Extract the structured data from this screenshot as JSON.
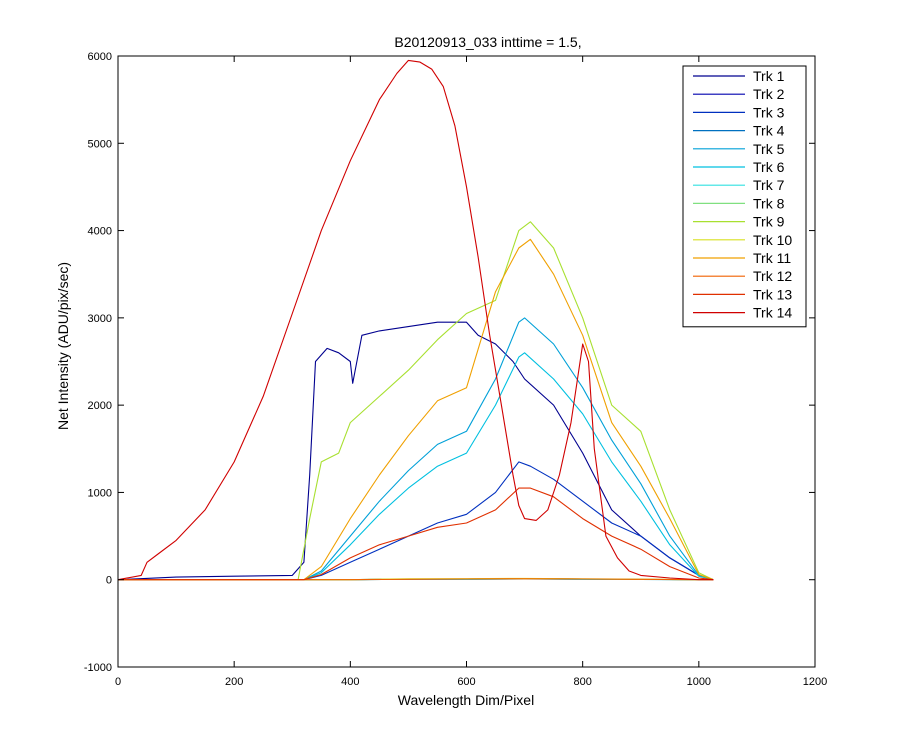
{
  "chart_data": {
    "type": "line",
    "title": "B20120913_033 inttime = 1.5,",
    "xlabel": "Wavelength Dim/Pixel",
    "ylabel": "Net Intensity (ADU/pix/sec)",
    "xlim": [
      0,
      1200
    ],
    "ylim": [
      -1000,
      6000
    ],
    "xticks": [
      0,
      200,
      400,
      600,
      800,
      1000,
      1200
    ],
    "yticks": [
      -1000,
      0,
      1000,
      2000,
      3000,
      4000,
      5000,
      6000
    ],
    "grid": false,
    "legend_position": "top-right",
    "series": [
      {
        "name": "Trk 1",
        "color": "#00008f",
        "x": [
          0,
          100,
          200,
          300,
          320,
          330,
          340,
          360,
          380,
          400,
          404,
          420,
          450,
          500,
          550,
          600,
          620,
          650,
          680,
          700,
          750,
          800,
          850,
          900,
          950,
          1000,
          1025
        ],
        "y": [
          0,
          30,
          40,
          50,
          200,
          1200,
          2500,
          2650,
          2600,
          2500,
          2250,
          2800,
          2850,
          2900,
          2950,
          2950,
          2800,
          2700,
          2500,
          2300,
          2000,
          1450,
          800,
          500,
          250,
          50,
          0
        ]
      },
      {
        "name": "Trk 2",
        "color": "#0000af",
        "x": [
          0,
          330,
          360,
          400,
          450,
          500,
          550,
          600,
          650,
          690,
          720,
          760,
          800,
          850,
          900,
          950,
          1000,
          1025
        ],
        "y": [
          0,
          0,
          0,
          0,
          5,
          5,
          5,
          8,
          10,
          10,
          10,
          10,
          8,
          5,
          3,
          2,
          0,
          0
        ]
      },
      {
        "name": "Trk 3",
        "color": "#0030bf",
        "x": [
          0,
          320,
          350,
          400,
          450,
          500,
          550,
          600,
          650,
          690,
          710,
          750,
          800,
          850,
          900,
          950,
          1000,
          1025
        ],
        "y": [
          0,
          0,
          50,
          200,
          350,
          500,
          650,
          750,
          1000,
          1350,
          1300,
          1150,
          900,
          650,
          500,
          250,
          50,
          0
        ]
      },
      {
        "name": "Trk 4",
        "color": "#0070c0",
        "x": [
          0,
          400,
          500,
          600,
          700,
          800,
          900,
          1000,
          1025
        ],
        "y": [
          0,
          0,
          5,
          5,
          8,
          5,
          3,
          0,
          0
        ]
      },
      {
        "name": "Trk 5",
        "color": "#00a0d8",
        "x": [
          0,
          320,
          350,
          400,
          450,
          500,
          550,
          600,
          650,
          690,
          700,
          750,
          800,
          850,
          900,
          950,
          1000,
          1025
        ],
        "y": [
          0,
          0,
          100,
          500,
          900,
          1250,
          1550,
          1700,
          2300,
          2950,
          3000,
          2700,
          2200,
          1600,
          1100,
          500,
          50,
          0
        ]
      },
      {
        "name": "Trk 6",
        "color": "#00c0e0",
        "x": [
          0,
          320,
          350,
          400,
          450,
          500,
          550,
          600,
          650,
          690,
          700,
          750,
          800,
          850,
          900,
          950,
          1000,
          1025
        ],
        "y": [
          0,
          0,
          80,
          400,
          750,
          1050,
          1300,
          1450,
          2000,
          2550,
          2600,
          2300,
          1900,
          1350,
          900,
          400,
          40,
          0
        ]
      },
      {
        "name": "Trk 7",
        "color": "#30e0e0",
        "x": [
          0,
          400,
          500,
          600,
          700,
          800,
          900,
          1000,
          1025
        ],
        "y": [
          0,
          0,
          5,
          5,
          10,
          5,
          3,
          0,
          0
        ]
      },
      {
        "name": "Trk 8",
        "color": "#80e080",
        "x": [
          0,
          400,
          500,
          600,
          700,
          800,
          900,
          1000,
          1025
        ],
        "y": [
          0,
          0,
          8,
          8,
          12,
          8,
          5,
          0,
          0
        ]
      },
      {
        "name": "Trk 9",
        "color": "#a8e030",
        "x": [
          0,
          310,
          330,
          350,
          380,
          400,
          450,
          500,
          550,
          600,
          650,
          690,
          710,
          750,
          800,
          850,
          900,
          950,
          1000,
          1025
        ],
        "y": [
          0,
          0,
          700,
          1350,
          1450,
          1800,
          2100,
          2400,
          2750,
          3050,
          3200,
          4000,
          4100,
          3800,
          3000,
          2000,
          1700,
          800,
          80,
          0
        ]
      },
      {
        "name": "Trk 10",
        "color": "#d8e020",
        "x": [
          0,
          400,
          500,
          600,
          700,
          800,
          900,
          1000,
          1025
        ],
        "y": [
          0,
          0,
          10,
          12,
          15,
          10,
          6,
          0,
          0
        ]
      },
      {
        "name": "Trk 11",
        "color": "#f0a000",
        "x": [
          0,
          320,
          350,
          400,
          450,
          500,
          550,
          600,
          650,
          690,
          710,
          750,
          800,
          850,
          900,
          950,
          1000,
          1025
        ],
        "y": [
          0,
          0,
          150,
          700,
          1200,
          1650,
          2050,
          2200,
          3300,
          3800,
          3900,
          3500,
          2800,
          1800,
          1300,
          700,
          60,
          0
        ]
      },
      {
        "name": "Trk 12",
        "color": "#f06000",
        "x": [
          0,
          400,
          500,
          600,
          700,
          800,
          900,
          1000,
          1025
        ],
        "y": [
          0,
          0,
          5,
          8,
          10,
          8,
          5,
          0,
          0
        ]
      },
      {
        "name": "Trk 13",
        "color": "#e03000",
        "x": [
          0,
          320,
          350,
          400,
          450,
          500,
          550,
          600,
          650,
          690,
          710,
          750,
          800,
          850,
          900,
          950,
          1000,
          1025
        ],
        "y": [
          0,
          0,
          60,
          250,
          400,
          500,
          600,
          650,
          800,
          1050,
          1050,
          950,
          700,
          500,
          350,
          150,
          20,
          0
        ]
      },
      {
        "name": "Trk 14",
        "color": "#d00000",
        "x": [
          0,
          40,
          50,
          70,
          100,
          150,
          200,
          250,
          300,
          350,
          400,
          450,
          480,
          500,
          520,
          540,
          560,
          580,
          600,
          620,
          640,
          660,
          680,
          690,
          700,
          720,
          740,
          760,
          780,
          800,
          810,
          820,
          840,
          860,
          880,
          900,
          950,
          1000,
          1025
        ],
        "y": [
          0,
          50,
          200,
          300,
          450,
          800,
          1350,
          2100,
          3050,
          4000,
          4800,
          5500,
          5800,
          5950,
          5930,
          5850,
          5650,
          5200,
          4500,
          3700,
          2800,
          2000,
          1200,
          850,
          700,
          680,
          800,
          1200,
          1800,
          2700,
          2500,
          1500,
          500,
          250,
          100,
          50,
          20,
          0,
          0
        ]
      }
    ]
  }
}
